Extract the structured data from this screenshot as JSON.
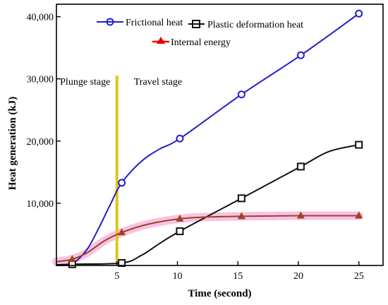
{
  "chart_data": {
    "type": "line",
    "title": "",
    "xlabel": "Time (second)",
    "ylabel": "Heat generation (kJ)",
    "xlim": [
      0,
      27
    ],
    "ylim": [
      0,
      42000
    ],
    "xticks": [
      5,
      10,
      15,
      20,
      25
    ],
    "yticks": [
      10000,
      20000,
      30000,
      40000
    ],
    "ytick_labels": [
      "10,000",
      "20,000",
      "30,000",
      "40,000"
    ],
    "grid": false,
    "legend_position": "top-left (inside plot)",
    "series": [
      {
        "name": "Frictional heat",
        "color": "#1f1fcc",
        "marker": "circle",
        "markers": [
          [
            1.3,
            300
          ],
          [
            5.4,
            13300
          ],
          [
            10.2,
            20400
          ],
          [
            15.3,
            27500
          ],
          [
            20.2,
            33800
          ],
          [
            25,
            40500
          ]
        ],
        "curve": [
          [
            0,
            0
          ],
          [
            1.3,
            300
          ],
          [
            2.5,
            2500
          ],
          [
            3.5,
            6000
          ],
          [
            4.5,
            10000
          ],
          [
            5.4,
            13300
          ],
          [
            7,
            16700
          ],
          [
            8.5,
            18700
          ],
          [
            10.2,
            20400
          ],
          [
            15.3,
            27500
          ],
          [
            20.2,
            33800
          ],
          [
            25,
            40500
          ]
        ]
      },
      {
        "name": "Plastic deformation heat",
        "color": "#111111",
        "marker": "square",
        "markers": [
          [
            1.3,
            200
          ],
          [
            5.4,
            400
          ],
          [
            10.2,
            5500
          ],
          [
            15.3,
            10800
          ],
          [
            20.2,
            15900
          ],
          [
            25,
            19400
          ]
        ],
        "curve": [
          [
            0,
            100
          ],
          [
            1.3,
            200
          ],
          [
            5.4,
            400
          ],
          [
            7,
            1600
          ],
          [
            8.5,
            3500
          ],
          [
            10.2,
            5500
          ],
          [
            15.3,
            10800
          ],
          [
            20.2,
            15900
          ],
          [
            22.5,
            18300
          ],
          [
            25,
            19400
          ]
        ]
      },
      {
        "name": "Internal energy",
        "color": "#a0431c",
        "marker": "triangle",
        "markers": [
          [
            1.3,
            1000
          ],
          [
            5.4,
            5300
          ],
          [
            10.2,
            7500
          ],
          [
            15.3,
            7900
          ],
          [
            20.2,
            8000
          ],
          [
            25,
            8000
          ]
        ],
        "curve": [
          [
            0,
            600
          ],
          [
            1.3,
            1000
          ],
          [
            2.5,
            2000
          ],
          [
            4,
            4000
          ],
          [
            5.4,
            5300
          ],
          [
            7.5,
            6600
          ],
          [
            10.2,
            7500
          ],
          [
            12.5,
            7800
          ],
          [
            15.3,
            7900
          ],
          [
            20.2,
            8000
          ],
          [
            25,
            8000
          ]
        ]
      }
    ],
    "annotations": [
      {
        "text": "Plunge stage",
        "x": 0.3,
        "y": 29600
      },
      {
        "text": "Travel stage",
        "x": 6.4,
        "y": 29600
      }
    ],
    "divider": {
      "x": 5,
      "color": "#e6c21a"
    },
    "highlight_color": "#f3b9e3"
  }
}
